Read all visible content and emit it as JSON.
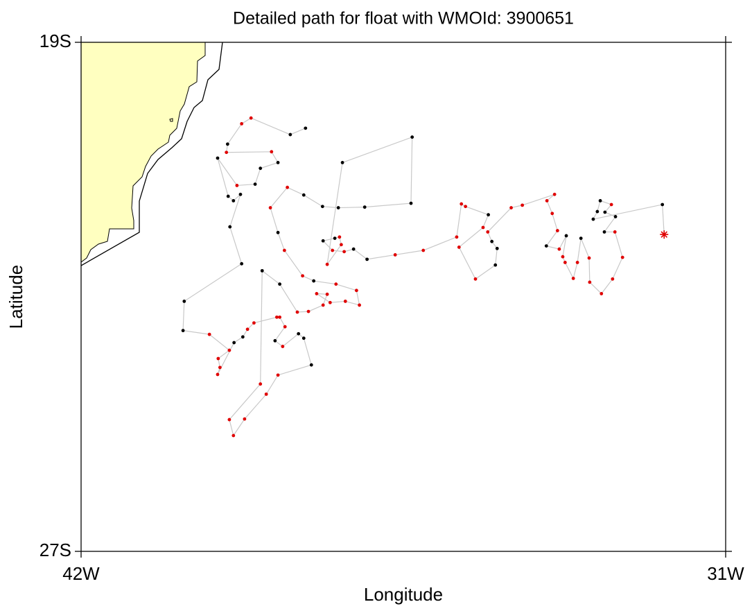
{
  "chart_data": {
    "type": "trajectory",
    "title": "Detailed path for float with WMOId: 3900651",
    "x_label": "Longitude",
    "y_label": "Latitude",
    "xlim": [
      -42,
      -31
    ],
    "ylim": [
      -27,
      -19
    ],
    "xticks": [
      {
        "value": -42,
        "label": "42W"
      },
      {
        "value": -31,
        "label": "31W"
      }
    ],
    "yticks": [
      {
        "value": -27,
        "label": "27S"
      },
      {
        "value": -19,
        "label": "19S"
      }
    ],
    "land_color": "#ffffc0",
    "series": [
      {
        "color": "#c8c8c8",
        "x": [
          -38.17,
          -38.43,
          -39.1,
          -39.26,
          -39.5,
          -39.52,
          -38.75,
          -38.64,
          -38.94,
          -39.03,
          -39.34,
          -39.67,
          -39.49,
          -39.4,
          -39.28,
          -39.46,
          -39.26,
          -40.24,
          -40.26,
          -39.81,
          -39.47,
          -39.66,
          -39.63,
          -39.67,
          -39.39,
          -39.24,
          -39.16,
          -39.05,
          -38.66,
          -38.61,
          -38.52,
          -38.69,
          -38.56,
          -38.29,
          -38.2,
          -38.07,
          -38.64,
          -38.84,
          -39.21,
          -39.4,
          -39.47,
          -38.94,
          -38.91,
          -38.61,
          -38.31,
          -38.12,
          -37.87,
          -37.8,
          -37.98,
          -37.75,
          -37.49,
          -37.25,
          -37.3,
          -37.65,
          -38.03,
          -38.22,
          -38.53,
          -38.64,
          -38.77,
          -38.48,
          -38.2,
          -37.88,
          -37.61,
          -37.16,
          -36.37,
          -36.35,
          -37.54,
          -37.8,
          -37.56,
          -37.59,
          -37.67,
          -37.87,
          -37.71,
          -37.51,
          -37.35,
          -37.12,
          -36.64,
          -36.16,
          -35.59,
          -35.51,
          -35.44,
          -35.05,
          -35.14,
          -35.55,
          -35.27,
          -34.93,
          -34.9,
          -34.99,
          -35.06,
          -34.66,
          -34.47,
          -33.92,
          -34.05,
          -33.96,
          -33.87,
          -34.06,
          -33.84,
          -33.72,
          -33.78,
          -33.74,
          -33.6,
          -33.53,
          -33.47,
          -33.33,
          -33.32,
          -33.12,
          -32.93,
          -32.76,
          -32.89,
          -33.07,
          -32.88,
          -33.06,
          -32.95,
          -33.14,
          -33.19,
          -33.26,
          -32.08,
          -32.05
        ],
        "y": [
          -20.35,
          -20.45,
          -20.19,
          -20.28,
          -20.6,
          -20.73,
          -20.72,
          -20.89,
          -20.98,
          -21.23,
          -21.25,
          -20.82,
          -21.42,
          -21.49,
          -21.39,
          -21.9,
          -22.48,
          -23.07,
          -23.53,
          -23.59,
          -23.84,
          -23.97,
          -24.11,
          -24.22,
          -23.72,
          -23.63,
          -23.51,
          -23.41,
          -23.32,
          -23.32,
          -23.47,
          -23.69,
          -23.78,
          -23.58,
          -23.65,
          -24.07,
          -24.23,
          -24.53,
          -24.92,
          -25.18,
          -24.93,
          -24.37,
          -22.59,
          -22.8,
          -23.24,
          -23.23,
          -23.13,
          -22.96,
          -22.95,
          -23.09,
          -23.07,
          -23.13,
          -22.9,
          -22.8,
          -22.75,
          -22.67,
          -22.27,
          -21.99,
          -21.6,
          -21.28,
          -21.4,
          -21.58,
          -21.6,
          -21.59,
          -21.53,
          -20.49,
          -20.89,
          -22.49,
          -22.18,
          -22.06,
          -22.08,
          -22.12,
          -22.27,
          -22.29,
          -22.25,
          -22.41,
          -22.34,
          -22.27,
          -22.06,
          -21.54,
          -21.58,
          -21.71,
          -21.91,
          -22.22,
          -22.72,
          -22.5,
          -22.24,
          -22.13,
          -21.98,
          -21.6,
          -21.56,
          -21.39,
          -21.49,
          -21.69,
          -21.96,
          -22.2,
          -22.25,
          -22.04,
          -22.37,
          -22.46,
          -22.71,
          -22.46,
          -22.08,
          -22.39,
          -22.77,
          -22.95,
          -22.72,
          -22.38,
          -21.98,
          -21.98,
          -21.74,
          -21.67,
          -21.55,
          -21.49,
          -21.66,
          -21.78,
          -21.55,
          -22.02
        ],
        "marker_colors": [
          "#000000",
          "#000000",
          "#e00000",
          "#e00000",
          "#000000",
          "#e00000",
          "#e00000",
          "#000000",
          "#000000",
          "#000000",
          "#e00000",
          "#000000",
          "#000000",
          "#000000",
          "#000000",
          "#000000",
          "#000000",
          "#000000",
          "#000000",
          "#e00000",
          "#e00000",
          "#e00000",
          "#e00000",
          "#e00000",
          "#000000",
          "#000000",
          "#e00000",
          "#e00000",
          "#e00000",
          "#e00000",
          "#e00000",
          "#000000",
          "#e00000",
          "#000000",
          "#000000",
          "#000000",
          "#e00000",
          "#e00000",
          "#e00000",
          "#e00000",
          "#e00000",
          "#e00000",
          "#000000",
          "#000000",
          "#e00000",
          "#e00000",
          "#e00000",
          "#e00000",
          "#e00000",
          "#e00000",
          "#e00000",
          "#e00000",
          "#e00000",
          "#e00000",
          "#000000",
          "#e00000",
          "#e00000",
          "#000000",
          "#e00000",
          "#e00000",
          "#000000",
          "#000000",
          "#000000",
          "#000000",
          "#000000",
          "#000000",
          "#000000",
          "#e00000",
          "#e00000",
          "#e00000",
          "#000000",
          "#000000",
          "#e00000",
          "#e00000",
          "#000000",
          "#000000",
          "#e00000",
          "#e00000",
          "#e00000",
          "#e00000",
          "#e00000",
          "#000000",
          "#e00000",
          "#e00000",
          "#e00000",
          "#000000",
          "#000000",
          "#000000",
          "#e00000",
          "#e00000",
          "#e00000",
          "#e00000",
          "#e00000",
          "#e00000",
          "#e00000",
          "#000000",
          "#e00000",
          "#000000",
          "#e00000",
          "#e00000",
          "#e00000",
          "#e00000",
          "#000000",
          "#e00000",
          "#e00000",
          "#e00000",
          "#e00000",
          "#e00000",
          "#e00000",
          "#000000",
          "#000000",
          "#000000",
          "#e00000",
          "#000000",
          "#000000",
          "#000000",
          "#000000",
          "#e00000"
        ]
      }
    ]
  }
}
